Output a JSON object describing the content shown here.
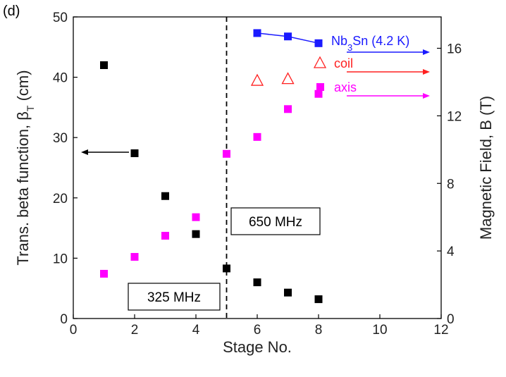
{
  "chart_data": {
    "type": "scatter",
    "panel_label": "(d)",
    "xlabel": "Stage No.",
    "ylabel": "Trans. beta function, β",
    "ylabel_sub": "T",
    "ylabel_unit": " (cm)",
    "y2label": "Magnetic Field, B (T)",
    "xlim": [
      0,
      12
    ],
    "ylim": [
      0,
      50
    ],
    "y2lim": [
      0,
      17.857
    ],
    "xticks": [
      0,
      2,
      4,
      6,
      8,
      10,
      12
    ],
    "yticks": [
      0,
      10,
      20,
      30,
      40,
      50
    ],
    "y2ticks": [
      0,
      4,
      8,
      12,
      16
    ],
    "grid": false,
    "series": [
      {
        "id": "beta",
        "axis": "left",
        "color": "#000000",
        "marker": "square",
        "x": [
          1,
          2,
          3,
          4,
          5,
          6,
          7,
          8
        ],
        "y": [
          42.0,
          27.4,
          20.3,
          14.0,
          8.3,
          6.0,
          4.3,
          3.2
        ]
      },
      {
        "id": "nb3sn",
        "name": "Nb3Sn (4.2 K)",
        "axis": "right",
        "color": "#1a1aff",
        "marker": "square",
        "line": true,
        "x": [
          6,
          7,
          8
        ],
        "y": [
          16.9,
          16.7,
          16.3
        ]
      },
      {
        "id": "coil",
        "name": "coil",
        "axis": "right",
        "color": "#ff2020",
        "marker": "triangle-open",
        "x": [
          6,
          7
        ],
        "y": [
          14.1,
          14.2
        ]
      },
      {
        "id": "axis",
        "name": "axis",
        "axis": "right",
        "color": "#ff00ff",
        "marker": "square",
        "x": [
          1,
          2,
          3,
          4,
          5,
          6,
          7,
          8
        ],
        "y": [
          2.65,
          3.65,
          4.9,
          6.0,
          9.75,
          10.75,
          12.4,
          13.3
        ]
      }
    ],
    "annotations": {
      "divider_x": 5,
      "box_low": "325 MHz",
      "box_high": "650 MHz",
      "legend_nb3sn_main": "Nb",
      "legend_nb3sn_sub": "3",
      "legend_nb3sn_rest": "Sn (4.2 K)",
      "legend_coil": "coil",
      "legend_axis": "axis"
    }
  }
}
